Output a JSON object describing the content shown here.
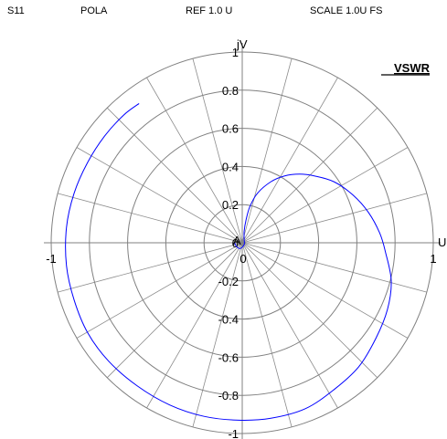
{
  "header": {
    "parameter": "S11",
    "format": "POLA",
    "reference": "REF 1.0 U",
    "scale": "SCALE 1.0U FS"
  },
  "chart_data": {
    "type": "polar",
    "title": "VSWR",
    "xlabel": "U",
    "ylabel": "jV",
    "rlim": [
      0,
      1
    ],
    "grid": true,
    "grid_circles": [
      0.2,
      0.4,
      0.6,
      0.8,
      1.0
    ],
    "spokes_deg": 15,
    "x_ticks": [
      {
        "value": -1,
        "label": "-1"
      },
      {
        "value": 0,
        "label": "0"
      },
      {
        "value": 1,
        "label": "1"
      }
    ],
    "y_ticks": [
      {
        "value": 1,
        "label": "1"
      },
      {
        "value": 0.8,
        "label": "0.8"
      },
      {
        "value": 0.6,
        "label": "0.6"
      },
      {
        "value": 0.4,
        "label": "0.4"
      },
      {
        "value": 0.2,
        "label": "0.2"
      },
      {
        "value": 0,
        "label": "0"
      },
      {
        "value": -0.2,
        "label": "-0.2"
      },
      {
        "value": -0.4,
        "label": "-0.4"
      },
      {
        "value": -0.6,
        "label": "-0.6"
      },
      {
        "value": -0.8,
        "label": "-0.8"
      },
      {
        "value": -1,
        "label": "-1"
      }
    ],
    "markers": [
      {
        "label": "A",
        "x": -0.02,
        "y": 0.02
      }
    ],
    "series": [
      {
        "color": "#0000ff",
        "points": [
          [
            -0.04,
            0.0
          ],
          [
            -0.03,
            -0.02
          ],
          [
            -0.01,
            -0.03
          ],
          [
            0.01,
            -0.01
          ],
          [
            0.01,
            0.02
          ],
          [
            0.01,
            0.06
          ],
          [
            0.02,
            0.12
          ],
          [
            0.04,
            0.19
          ],
          [
            0.08,
            0.26
          ],
          [
            0.15,
            0.32
          ],
          [
            0.22,
            0.35
          ],
          [
            0.3,
            0.36
          ],
          [
            0.38,
            0.35
          ],
          [
            0.48,
            0.32
          ],
          [
            0.58,
            0.25
          ],
          [
            0.66,
            0.16
          ],
          [
            0.72,
            0.05
          ],
          [
            0.75,
            -0.05
          ],
          [
            0.78,
            -0.2
          ],
          [
            0.76,
            -0.35
          ],
          [
            0.7,
            -0.5
          ],
          [
            0.61,
            -0.65
          ],
          [
            0.48,
            -0.77
          ],
          [
            0.33,
            -0.87
          ],
          [
            0.15,
            -0.92
          ],
          [
            -0.02,
            -0.93
          ],
          [
            -0.2,
            -0.91
          ],
          [
            -0.38,
            -0.85
          ],
          [
            -0.55,
            -0.75
          ],
          [
            -0.7,
            -0.62
          ],
          [
            -0.81,
            -0.47
          ],
          [
            -0.88,
            -0.3
          ],
          [
            -0.92,
            -0.12
          ],
          [
            -0.92,
            0.08
          ],
          [
            -0.88,
            0.26
          ],
          [
            -0.81,
            0.42
          ],
          [
            -0.72,
            0.56
          ],
          [
            -0.62,
            0.67
          ],
          [
            -0.54,
            0.73
          ]
        ]
      }
    ]
  }
}
